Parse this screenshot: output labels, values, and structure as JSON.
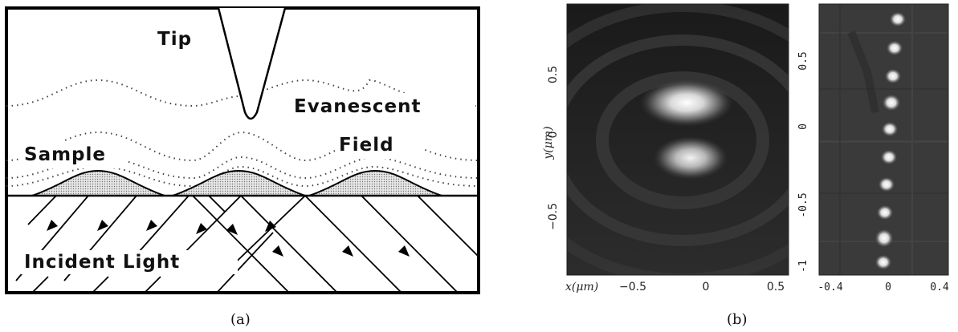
{
  "panel_a": {
    "labels": {
      "tip": "Tip",
      "evanescent": "Evanescent",
      "sample": "Sample",
      "field": "Field",
      "incident_light": "Incident Light"
    },
    "caption": "(a)"
  },
  "panel_b": {
    "caption": "(b)",
    "left_image": {
      "x_label": "x(μm)",
      "y_label": "y(μm)",
      "x_ticks": [
        "−0.5",
        "0",
        "0.5"
      ],
      "y_ticks": [
        "0.5",
        "0",
        "−0.5"
      ]
    },
    "right_image": {
      "x_ticks": [
        "-0.4",
        "0",
        "0.4"
      ],
      "y_ticks": [
        "0.5",
        "0",
        "-0.5",
        "-1"
      ]
    }
  }
}
